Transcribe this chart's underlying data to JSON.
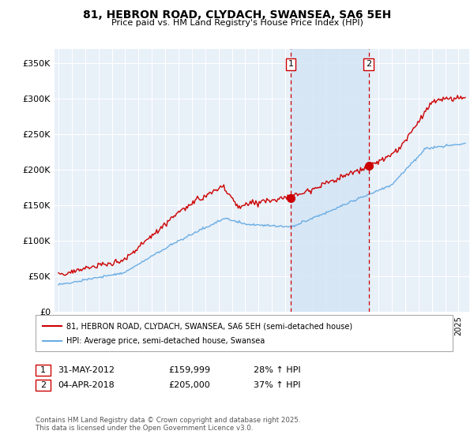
{
  "title": "81, HEBRON ROAD, CLYDACH, SWANSEA, SA6 5EH",
  "subtitle": "Price paid vs. HM Land Registry's House Price Index (HPI)",
  "ylim": [
    0,
    370000
  ],
  "yticks": [
    0,
    50000,
    100000,
    150000,
    200000,
    250000,
    300000,
    350000
  ],
  "ytick_labels": [
    "£0",
    "£50K",
    "£100K",
    "£150K",
    "£200K",
    "£250K",
    "£300K",
    "£350K"
  ],
  "background_color": "#ffffff",
  "plot_bg_color": "#e8f0f8",
  "grid_color": "#ffffff",
  "red_line_color": "#cc0000",
  "blue_line_color": "#6aade4",
  "sale1_date": "31-MAY-2012",
  "sale1_price": 159999,
  "sale1_hpi_pct": "28%",
  "sale2_date": "04-APR-2018",
  "sale2_price": 205000,
  "sale2_hpi_pct": "37%",
  "legend_line1": "81, HEBRON ROAD, CLYDACH, SWANSEA, SA6 5EH (semi-detached house)",
  "legend_line2": "HPI: Average price, semi-detached house, Swansea",
  "footer": "Contains HM Land Registry data © Crown copyright and database right 2025.\nThis data is licensed under the Open Government Licence v3.0.",
  "vline1_x": 2012.42,
  "vline2_x": 2018.25,
  "sale1_marker_y": 159999,
  "sale2_marker_y": 205000,
  "xmin": 1994.7,
  "xmax": 2025.8
}
